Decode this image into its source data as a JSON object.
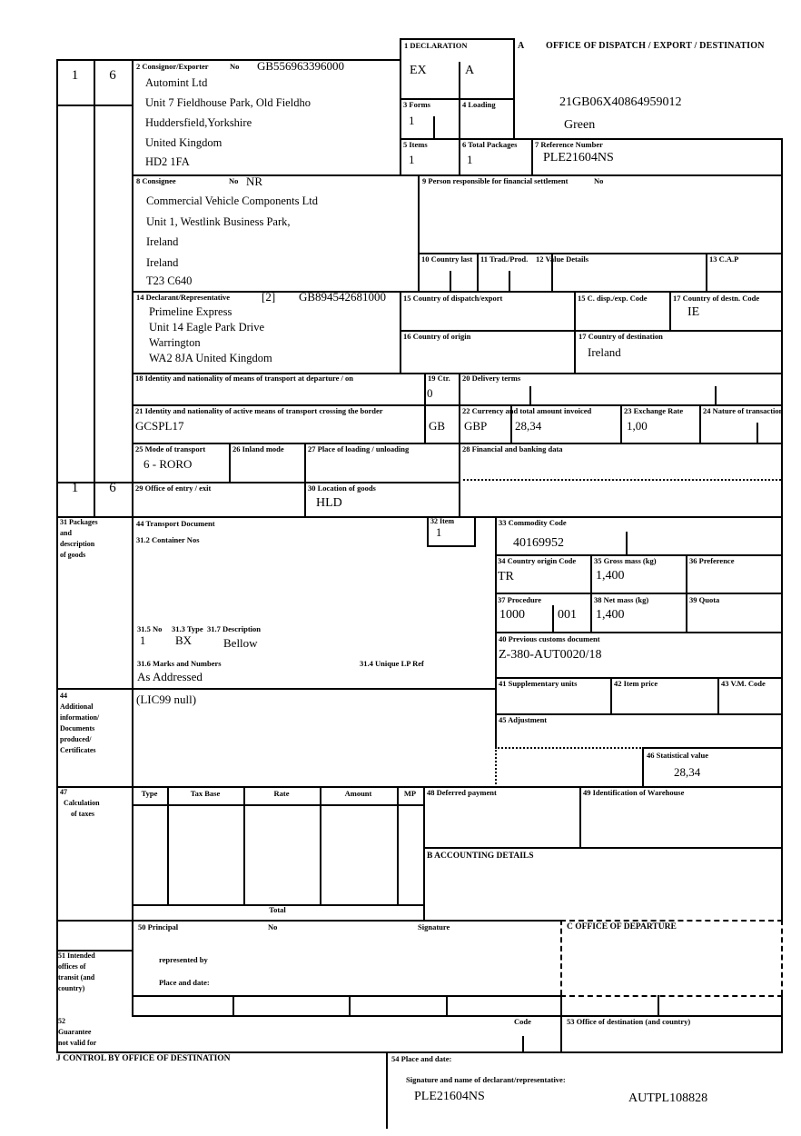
{
  "form": {
    "copy": {
      "n1": "1",
      "n2": "6"
    },
    "sectionA": {
      "label": "A",
      "title": "OFFICE OF DISPATCH / EXPORT / DESTINATION",
      "mrn": "21GB06X40864959012",
      "status": "Green"
    },
    "b1": {
      "label": "1 DECLARATION",
      "v1": "EX",
      "v2": "A"
    },
    "b2": {
      "label": "2 Consignor/Exporter",
      "no_label": "No",
      "eori": "GB556963396000",
      "lines": [
        "Automint Ltd",
        "Unit 7 Fieldhouse Park, Old Fieldho",
        "Huddersfield,Yorkshire",
        "United Kingdom",
        "HD2 1FA"
      ]
    },
    "b3": {
      "label": "3 Forms",
      "value": "1"
    },
    "b4": {
      "label": "4 Loading"
    },
    "b5": {
      "label": "5 Items",
      "value": "1"
    },
    "b6": {
      "label": "6 Total Packages",
      "value": "1"
    },
    "b7": {
      "label": "7 Reference Number",
      "value": "PLE21604NS"
    },
    "b8": {
      "label": "8 Consignee",
      "no_label": "No",
      "no_value": "NR",
      "lines": [
        "Commercial Vehicle Components Ltd",
        "Unit 1, Westlink Business Park,",
        "Ireland",
        "Ireland",
        "T23 C640"
      ]
    },
    "b9": {
      "label": "9 Person responsible for financial settlement",
      "no_label": "No"
    },
    "b10": {
      "label": "10 Country last"
    },
    "b11": {
      "label": "11 Trad./Prod."
    },
    "b12": {
      "label": "12 Value Details"
    },
    "b13": {
      "label": "13 C.A.P"
    },
    "b14": {
      "label": "14 Declarant/Representative",
      "code": "[2]",
      "eori": "GB894542681000",
      "lines": [
        "Primeline Express",
        "Unit 14 Eagle Park Drive",
        "Warrington",
        "WA2 8JA United Kingdom"
      ]
    },
    "b15": {
      "label": "15 Country of dispatch/export"
    },
    "b15c": {
      "label": "15 C. disp./exp. Code"
    },
    "b17c": {
      "label": "17 Country of destn. Code",
      "value": "IE"
    },
    "b16": {
      "label": "16 Country of origin"
    },
    "b17": {
      "label": "17 Country of destination",
      "value": "Ireland"
    },
    "b18": {
      "label": "18 Identity and nationality of means of transport at departure / on"
    },
    "b19": {
      "label": "19 Ctr.",
      "value": "0"
    },
    "b20": {
      "label": "20 Delivery terms"
    },
    "b21": {
      "label": "21 Identity and nationality of active means of transport crossing the border",
      "value": "GCSPL17",
      "nationality": "GB"
    },
    "b22": {
      "label": "22 Currency and total amount invoiced",
      "currency": "GBP",
      "amount": "28,34"
    },
    "b23": {
      "label": "23 Exchange Rate",
      "value": "1,00"
    },
    "b24": {
      "label": "24 Nature of transaction"
    },
    "b25": {
      "label": "25 Mode of transport",
      "value": "6 - RORO"
    },
    "b26": {
      "label": "26 Inland mode"
    },
    "b27": {
      "label": "27 Place of loading / unloading"
    },
    "b28": {
      "label": "28 Financial and banking data"
    },
    "b29": {
      "label": "29 Office of entry / exit"
    },
    "b30": {
      "label": "30 Location of goods",
      "value": "HLD"
    },
    "b31": {
      "lines": [
        "31 Packages",
        "and",
        "description",
        "of goods"
      ]
    },
    "b44t": {
      "label": "44 Transport Document"
    },
    "b31_2": {
      "label": "31.2 Container Nos"
    },
    "b32": {
      "label": "32 Item",
      "value": "1"
    },
    "b33": {
      "label": "33 Commodity Code",
      "value": "40169952"
    },
    "b34": {
      "label": "34 Country origin Code",
      "value": "TR"
    },
    "b35": {
      "label": "35 Gross mass (kg)",
      "value": "1,400"
    },
    "b36": {
      "label": "36 Preference"
    },
    "b37": {
      "label": "37 Procedure",
      "v1": "1000",
      "v2": "001"
    },
    "b38": {
      "label": "38 Net mass (kg)",
      "value": "1,400"
    },
    "b39": {
      "label": "39 Quota"
    },
    "b31_5": {
      "label": "31.5 No",
      "value": "1"
    },
    "b31_3": {
      "label": "31.3 Type",
      "value": "BX"
    },
    "b31_7": {
      "label": "31.7 Description",
      "value": "Bellow"
    },
    "b40": {
      "label": "40 Previous customs document",
      "value": "Z-380-AUT0020/18"
    },
    "b31_6": {
      "label": "31.6 Marks and Numbers",
      "value": "As Addressed"
    },
    "b31_4": {
      "label": "31.4 Unique LP Ref"
    },
    "b41": {
      "label": "41 Supplementary units"
    },
    "b42": {
      "label": "42 Item price"
    },
    "b43": {
      "label": "43 V.M. Code"
    },
    "b44": {
      "lines": [
        "44",
        "Additional",
        "information/",
        "Documents",
        "produced/",
        "Certificates"
      ],
      "value": "(LIC99 null)"
    },
    "b45": {
      "label": "45 Adjustment"
    },
    "b46": {
      "label": "46 Statistical value",
      "value": "28,34"
    },
    "b47": {
      "lines": [
        "47",
        "Calculation",
        "of taxes"
      ],
      "col_type": "Type",
      "col_taxbase": "Tax Base",
      "col_rate": "Rate",
      "col_amount": "Amount",
      "col_mp": "MP",
      "total_label": "Total"
    },
    "b48": {
      "label": "48 Deferred payment"
    },
    "b49": {
      "label": "49 Identification of Warehouse"
    },
    "sectionB": {
      "title": "B ACCOUNTING DETAILS"
    },
    "b50": {
      "label": "50 Principal",
      "no_label": "No",
      "sig_label": "Signature",
      "rep_label": "represented by",
      "place_label": "Place and date:"
    },
    "sectionC": {
      "title": "C OFFICE OF DEPARTURE"
    },
    "b51": {
      "lines": [
        "51 Intended",
        "offices of",
        "transit (and",
        "country)"
      ]
    },
    "b52": {
      "lines": [
        "52",
        "Guarantee",
        "not valid for"
      ],
      "code_label": "Code"
    },
    "b53": {
      "label": "53 Office of destination (and country)"
    },
    "sectionJ": {
      "title": "J CONTROL BY OFFICE OF DESTINATION"
    },
    "b54": {
      "label": "54 Place and date:",
      "sig_label": "Signature and name of declarant/representative:",
      "reference": "PLE21604NS",
      "auth": "AUTPL108828"
    }
  }
}
